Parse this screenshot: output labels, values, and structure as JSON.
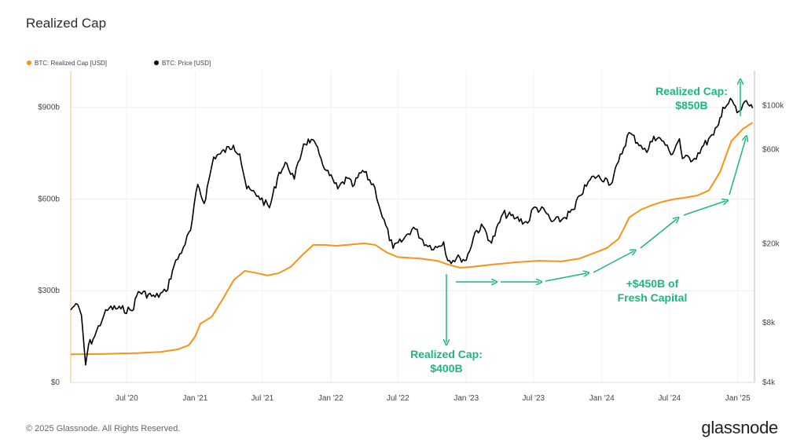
{
  "title": "Realized Cap",
  "footer": "© 2025 Glassnode. All Rights Reserved.",
  "logo": "glassnode",
  "colors": {
    "realized": "#f7931a",
    "price": "#000000",
    "annotation": "#1cb77a",
    "grid": "#e6e6e6",
    "axis": "#999999"
  },
  "chart_data": {
    "type": "line",
    "title": "Realized Cap",
    "legend": {
      "placement": "top-left",
      "items": [
        {
          "name": "BTC: Realized Cap [USD]",
          "color": "#f7931a"
        },
        {
          "name": "BTC: Price [USD]",
          "color": "#000000"
        }
      ]
    },
    "grid": true,
    "x_axis": {
      "range": [
        "2020-02-01",
        "2025-02-15"
      ],
      "ticks": [
        {
          "date": "2020-07-01",
          "label": "Jul '20"
        },
        {
          "date": "2021-01-01",
          "label": "Jan '21"
        },
        {
          "date": "2021-07-01",
          "label": "Jul '21"
        },
        {
          "date": "2022-01-01",
          "label": "Jan '22"
        },
        {
          "date": "2022-07-01",
          "label": "Jul '22"
        },
        {
          "date": "2023-01-01",
          "label": "Jan '23"
        },
        {
          "date": "2023-07-01",
          "label": "Jul '23"
        },
        {
          "date": "2024-01-01",
          "label": "Jan '24"
        },
        {
          "date": "2024-07-01",
          "label": "Jul '24"
        },
        {
          "date": "2025-01-01",
          "label": "Jan '25"
        }
      ]
    },
    "y_left": {
      "scale": "linear",
      "unit": "USD billions",
      "range": [
        0,
        1020
      ],
      "ticks": [
        {
          "value": 0,
          "label": "$0"
        },
        {
          "value": 300,
          "label": "$300b"
        },
        {
          "value": 600,
          "label": "$600b"
        },
        {
          "value": 900,
          "label": "$900b"
        }
      ]
    },
    "y_right": {
      "scale": "log",
      "unit": "USD",
      "range": [
        4000,
        150000
      ],
      "ticks": [
        {
          "value": 4000,
          "label": "$4k"
        },
        {
          "value": 8000,
          "label": "$8k"
        },
        {
          "value": 20000,
          "label": "$20k"
        },
        {
          "value": 60000,
          "label": "$60k"
        },
        {
          "value": 100000,
          "label": "$100k"
        }
      ]
    },
    "series": [
      {
        "name": "BTC: Realized Cap [USD]",
        "axis": "left",
        "color": "#f7931a",
        "points": [
          [
            "2020-02-01",
            92
          ],
          [
            "2020-05-01",
            93
          ],
          [
            "2020-08-01",
            96
          ],
          [
            "2020-10-01",
            100
          ],
          [
            "2020-11-15",
            108
          ],
          [
            "2020-12-15",
            122
          ],
          [
            "2021-01-01",
            150
          ],
          [
            "2021-01-15",
            192
          ],
          [
            "2021-02-15",
            215
          ],
          [
            "2021-03-15",
            270
          ],
          [
            "2021-04-15",
            335
          ],
          [
            "2021-05-15",
            365
          ],
          [
            "2021-06-15",
            358
          ],
          [
            "2021-07-15",
            350
          ],
          [
            "2021-08-15",
            358
          ],
          [
            "2021-09-15",
            378
          ],
          [
            "2021-10-15",
            415
          ],
          [
            "2021-11-15",
            450
          ],
          [
            "2021-12-15",
            450
          ],
          [
            "2022-01-15",
            447
          ],
          [
            "2022-02-15",
            450
          ],
          [
            "2022-04-01",
            455
          ],
          [
            "2022-05-01",
            450
          ],
          [
            "2022-06-01",
            425
          ],
          [
            "2022-07-01",
            410
          ],
          [
            "2022-09-01",
            405
          ],
          [
            "2022-10-15",
            398
          ],
          [
            "2022-11-15",
            385
          ],
          [
            "2022-12-15",
            375
          ],
          [
            "2023-01-15",
            378
          ],
          [
            "2023-03-15",
            386
          ],
          [
            "2023-05-15",
            393
          ],
          [
            "2023-07-15",
            398
          ],
          [
            "2023-09-15",
            396
          ],
          [
            "2023-11-01",
            405
          ],
          [
            "2023-12-15",
            425
          ],
          [
            "2024-01-15",
            440
          ],
          [
            "2024-02-15",
            470
          ],
          [
            "2024-03-01",
            505
          ],
          [
            "2024-03-15",
            540
          ],
          [
            "2024-04-15",
            565
          ],
          [
            "2024-05-15",
            580
          ],
          [
            "2024-06-15",
            592
          ],
          [
            "2024-07-15",
            600
          ],
          [
            "2024-08-15",
            605
          ],
          [
            "2024-09-15",
            612
          ],
          [
            "2024-10-15",
            628
          ],
          [
            "2024-11-15",
            690
          ],
          [
            "2024-12-01",
            745
          ],
          [
            "2024-12-15",
            790
          ],
          [
            "2025-01-15",
            830
          ],
          [
            "2025-02-10",
            850
          ]
        ]
      },
      {
        "name": "BTC: Price [USD]",
        "axis": "right",
        "color": "#000000",
        "points": [
          [
            "2020-02-01",
            9300
          ],
          [
            "2020-02-15",
            10000
          ],
          [
            "2020-03-01",
            8700
          ],
          [
            "2020-03-12",
            4900
          ],
          [
            "2020-03-20",
            6200
          ],
          [
            "2020-04-01",
            6600
          ],
          [
            "2020-04-30",
            8700
          ],
          [
            "2020-05-15",
            9500
          ],
          [
            "2020-06-15",
            9400
          ],
          [
            "2020-07-15",
            9200
          ],
          [
            "2020-08-01",
            11500
          ],
          [
            "2020-09-15",
            10800
          ],
          [
            "2020-10-15",
            11500
          ],
          [
            "2020-11-05",
            15500
          ],
          [
            "2020-11-30",
            19200
          ],
          [
            "2020-12-20",
            23500
          ],
          [
            "2021-01-08",
            40000
          ],
          [
            "2021-01-25",
            32000
          ],
          [
            "2021-02-20",
            55000
          ],
          [
            "2021-03-10",
            57000
          ],
          [
            "2021-04-14",
            63000
          ],
          [
            "2021-05-01",
            57000
          ],
          [
            "2021-05-20",
            38000
          ],
          [
            "2021-06-20",
            35000
          ],
          [
            "2021-07-20",
            30500
          ],
          [
            "2021-08-15",
            46000
          ],
          [
            "2021-09-05",
            51000
          ],
          [
            "2021-09-25",
            42500
          ],
          [
            "2021-10-20",
            64000
          ],
          [
            "2021-11-10",
            67500
          ],
          [
            "2021-12-01",
            57000
          ],
          [
            "2021-12-20",
            47000
          ],
          [
            "2022-01-20",
            38000
          ],
          [
            "2022-02-15",
            43000
          ],
          [
            "2022-03-01",
            39000
          ],
          [
            "2022-03-28",
            47000
          ],
          [
            "2022-04-30",
            38500
          ],
          [
            "2022-05-15",
            29500
          ],
          [
            "2022-06-18",
            19000
          ],
          [
            "2022-07-15",
            21000
          ],
          [
            "2022-08-12",
            24300
          ],
          [
            "2022-09-15",
            19800
          ],
          [
            "2022-10-15",
            19200
          ],
          [
            "2022-11-01",
            20500
          ],
          [
            "2022-11-12",
            16500
          ],
          [
            "2022-12-15",
            17000
          ],
          [
            "2023-01-01",
            16600
          ],
          [
            "2023-01-25",
            23000
          ],
          [
            "2023-02-15",
            24500
          ],
          [
            "2023-03-10",
            20200
          ],
          [
            "2023-04-10",
            28500
          ],
          [
            "2023-05-15",
            27000
          ],
          [
            "2023-06-15",
            25500
          ],
          [
            "2023-07-01",
            30500
          ],
          [
            "2023-08-01",
            29300
          ],
          [
            "2023-08-18",
            26000
          ],
          [
            "2023-09-15",
            26500
          ],
          [
            "2023-10-20",
            30000
          ],
          [
            "2023-11-01",
            35000
          ],
          [
            "2023-12-10",
            44000
          ],
          [
            "2024-01-15",
            42500
          ],
          [
            "2024-01-25",
            40000
          ],
          [
            "2024-02-15",
            52000
          ],
          [
            "2024-03-14",
            73000
          ],
          [
            "2024-04-15",
            63000
          ],
          [
            "2024-05-01",
            58000
          ],
          [
            "2024-05-20",
            70000
          ],
          [
            "2024-06-15",
            66000
          ],
          [
            "2024-07-05",
            56500
          ],
          [
            "2024-07-28",
            68000
          ],
          [
            "2024-08-05",
            54000
          ],
          [
            "2024-09-06",
            54000
          ],
          [
            "2024-10-01",
            63000
          ],
          [
            "2024-10-28",
            71000
          ],
          [
            "2024-11-10",
            80000
          ],
          [
            "2024-11-22",
            98000
          ],
          [
            "2024-12-17",
            106000
          ],
          [
            "2024-12-30",
            92000
          ],
          [
            "2025-01-10",
            95000
          ],
          [
            "2025-01-20",
            105000
          ],
          [
            "2025-02-10",
            97000
          ]
        ]
      }
    ],
    "annotations": [
      {
        "text_lines": [
          "Realized Cap:",
          "$850B"
        ],
        "color": "#1cb77a"
      },
      {
        "text_lines": [
          "Realized Cap:",
          "$400B"
        ],
        "color": "#1cb77a"
      },
      {
        "text_lines": [
          "+$450B of",
          "Fresh Capital"
        ],
        "color": "#1cb77a"
      }
    ]
  }
}
